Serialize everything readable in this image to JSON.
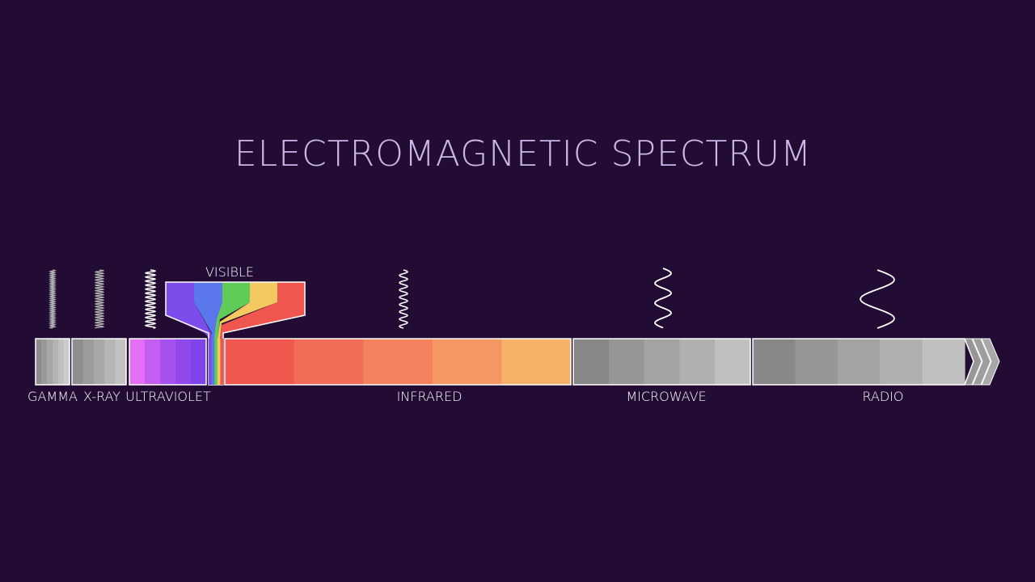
{
  "title": "ELECTROMAGNETIC SPECTRUM",
  "colors": {
    "background": "#220c33",
    "title": "#c9b8e8",
    "label": "#ffffff",
    "outline": "#ffffff"
  },
  "bands": [
    {
      "label": "GAMMA",
      "colors": [
        "#8c8c8c",
        "#999999",
        "#a6a6a6",
        "#b3b3b3",
        "#c0c0c0",
        "#cccccc"
      ]
    },
    {
      "label": "X-RAY",
      "colors": [
        "#8e8e8e",
        "#9b9b9b",
        "#a8a8a8",
        "#b5b5b5",
        "#c2c2c2"
      ]
    },
    {
      "label": "ULTRAVIOLET",
      "colors": [
        "#e46ef4",
        "#c45ef0",
        "#a752ee",
        "#9249ec",
        "#7f45ea"
      ]
    },
    {
      "label": "INFRARED",
      "colors": [
        "#f0574f",
        "#f26c57",
        "#f3815d",
        "#f59762",
        "#f6b266"
      ]
    },
    {
      "label": "MICROWAVE",
      "colors": [
        "#888888",
        "#969696",
        "#a3a3a3",
        "#b0b0b0",
        "#c0c0c0"
      ]
    },
    {
      "label": "RADIO",
      "colors": [
        "#888888",
        "#969696",
        "#a3a3a3",
        "#b0b0b0",
        "#c0c0c0"
      ]
    }
  ],
  "visible": {
    "label": "VISIBLE",
    "colors": [
      "#7c4dea",
      "#5a78ec",
      "#5fcc57",
      "#f4c960",
      "#ef5650"
    ]
  },
  "icons": [
    "gamma-wave-icon",
    "xray-wave-icon",
    "ultraviolet-wave-icon",
    "infrared-wave-icon",
    "microwave-wave-icon",
    "radio-wave-icon",
    "arrow-head-icon"
  ]
}
